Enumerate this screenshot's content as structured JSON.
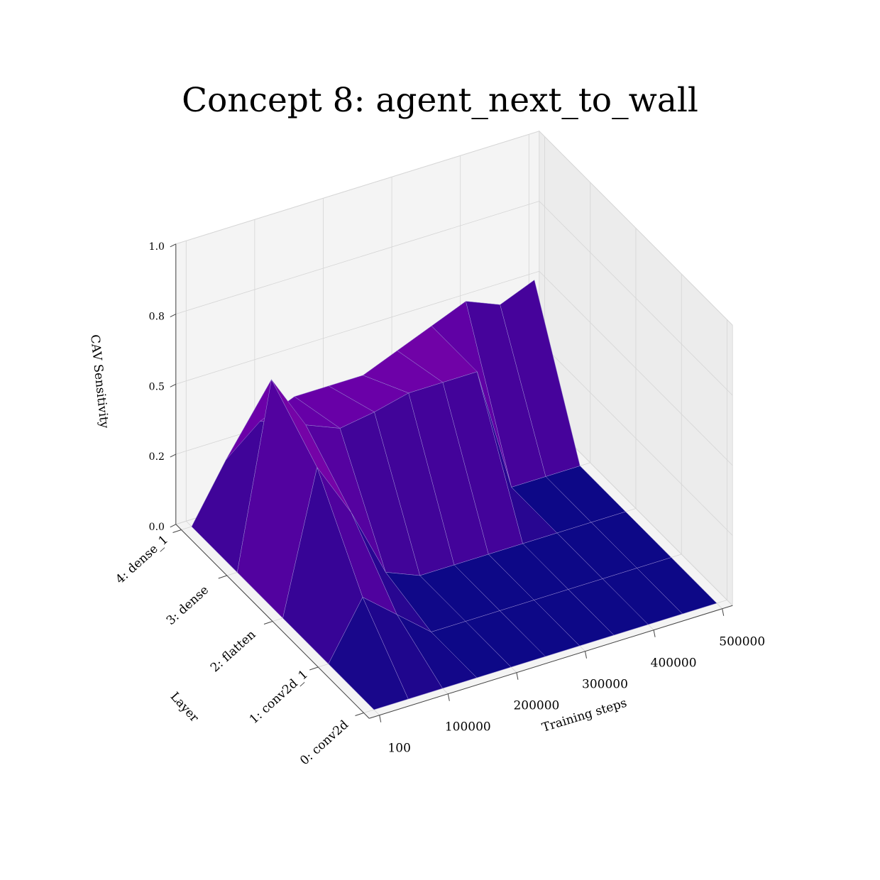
{
  "chart_data": {
    "type": "surface3d",
    "title": "Concept 8: agent_next_to_wall",
    "xlabel": "Training steps",
    "ylabel": "Layer",
    "zlabel": "CAV Sensitivity",
    "x_ticks": [
      "100",
      "100000",
      "200000",
      "300000",
      "400000",
      "500000"
    ],
    "y_ticks": [
      "0: conv2d",
      "1: conv2d_1",
      "2: flatten",
      "3: dense",
      "4: dense_1"
    ],
    "z_ticks": [
      "0.0",
      "0.2",
      "0.5",
      "0.8",
      "1.0"
    ],
    "zlim": [
      0,
      1
    ],
    "colormap": "plasma",
    "colors": {
      "low": "#0d0887",
      "mid": "#6a00a8",
      "high": "#8b0aa5",
      "pane_back": "#f4f4f4",
      "pane_side": "#ececec",
      "grid": "#d5d5d5"
    },
    "layers": [
      "0: conv2d",
      "1: conv2d_1",
      "2: flatten",
      "3: dense",
      "4: dense_1"
    ],
    "training_steps": [
      100,
      50000,
      100000,
      150000,
      200000,
      250000,
      300000,
      350000,
      400000,
      450000,
      500000
    ],
    "sensitivity": [
      [
        0.0,
        0.0,
        0.0,
        0.0,
        0.0,
        0.0,
        0.0,
        0.0,
        0.0,
        0.0,
        0.0
      ],
      [
        0.0,
        0.2,
        0.1,
        0.0,
        0.0,
        0.0,
        0.0,
        0.0,
        0.0,
        0.0,
        0.0
      ],
      [
        0.0,
        0.5,
        0.3,
        0.05,
        0.0,
        0.0,
        0.0,
        0.0,
        0.0,
        0.0,
        0.0
      ],
      [
        0.0,
        0.65,
        0.45,
        0.4,
        0.42,
        0.45,
        0.45,
        0.45,
        0.0,
        0.0,
        0.0
      ],
      [
        0.0,
        0.2,
        0.3,
        0.35,
        0.35,
        0.35,
        0.4,
        0.45,
        0.5,
        0.45,
        0.5
      ]
    ]
  }
}
